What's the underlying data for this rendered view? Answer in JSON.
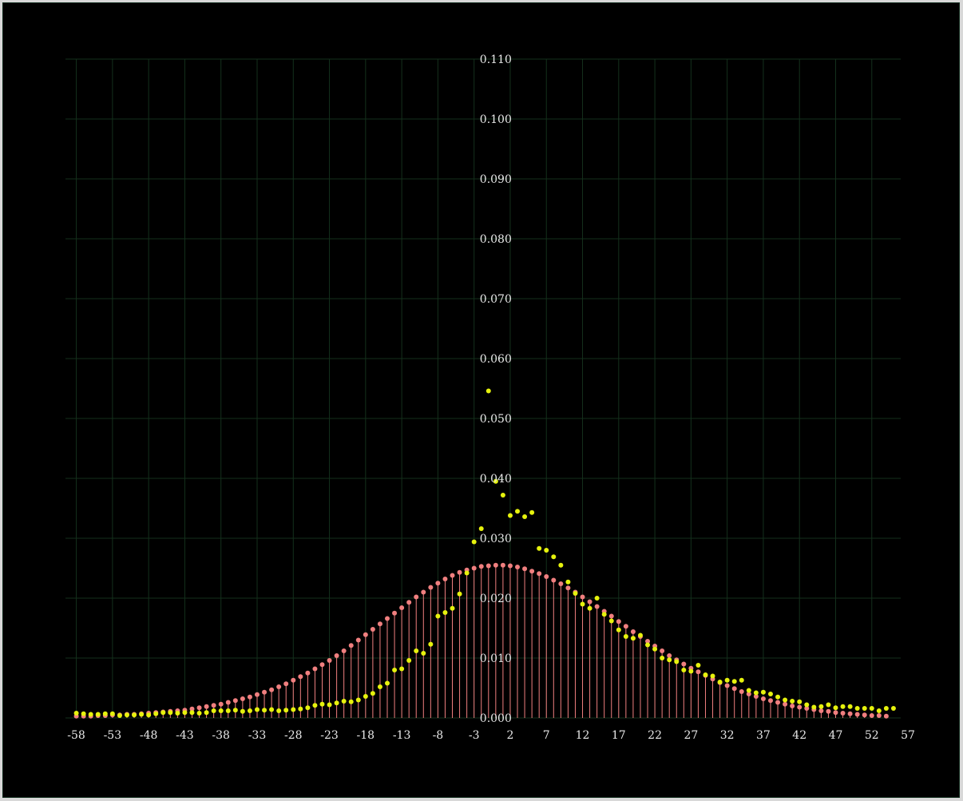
{
  "chart_data": {
    "type": "scatter",
    "grid": true,
    "colors": {
      "background": "#000000",
      "grid": "#14301c",
      "stem_series": "#f07f7f",
      "point_series": "#e6f20d",
      "text": "#e8e8e8"
    },
    "xlim": [
      -59.5,
      56
    ],
    "ylim": [
      0,
      0.11
    ],
    "x_ticks": [
      -58,
      -53,
      -48,
      -43,
      -38,
      -33,
      -28,
      -23,
      -18,
      -13,
      -8,
      -3,
      2,
      7,
      12,
      17,
      22,
      27,
      32,
      37,
      42,
      47,
      52,
      57
    ],
    "y_ticks": [
      0.0,
      0.01,
      0.02,
      0.03,
      0.04,
      0.05,
      0.06,
      0.07,
      0.08,
      0.09,
      0.1,
      0.11
    ],
    "y_tick_labels": [
      "0.000",
      "0.010",
      "0.020",
      "0.030",
      "0.040",
      "0.050",
      "0.060",
      "0.070",
      "0.080",
      "0.090",
      "0.100",
      "0.110"
    ],
    "x_start": -58,
    "series": [
      {
        "style": "stem",
        "color": "#f07f7f",
        "values": [
          0.0003,
          0.0003,
          0.0003,
          0.0004,
          0.0004,
          0.0005,
          0.0005,
          0.0006,
          0.0006,
          0.0007,
          0.0008,
          0.0009,
          0.001,
          0.0011,
          0.0012,
          0.0013,
          0.0015,
          0.0017,
          0.0019,
          0.0021,
          0.0023,
          0.0026,
          0.0029,
          0.0032,
          0.0035,
          0.0039,
          0.0043,
          0.0047,
          0.0052,
          0.0057,
          0.0063,
          0.0069,
          0.0075,
          0.0082,
          0.0089,
          0.0096,
          0.0104,
          0.0112,
          0.0121,
          0.013,
          0.0139,
          0.0148,
          0.0157,
          0.0166,
          0.0175,
          0.0184,
          0.0193,
          0.0202,
          0.021,
          0.0218,
          0.0225,
          0.0232,
          0.0238,
          0.0243,
          0.0247,
          0.025,
          0.0253,
          0.0254,
          0.0255,
          0.0255,
          0.0254,
          0.0252,
          0.0249,
          0.0245,
          0.0241,
          0.0236,
          0.023,
          0.0224,
          0.0217,
          0.021,
          0.0202,
          0.0194,
          0.0186,
          0.0178,
          0.017,
          0.0161,
          0.0153,
          0.0144,
          0.0136,
          0.0128,
          0.012,
          0.0112,
          0.0104,
          0.0097,
          0.009,
          0.0083,
          0.0077,
          0.0071,
          0.0065,
          0.0059,
          0.0054,
          0.0049,
          0.0044,
          0.004,
          0.0036,
          0.0032,
          0.0029,
          0.0026,
          0.0023,
          0.002,
          0.0018,
          0.0016,
          0.0014,
          0.0012,
          0.0011,
          0.0009,
          0.0008,
          0.0007,
          0.0006,
          0.0005,
          0.0004,
          0.0004,
          0.0003
        ]
      },
      {
        "style": "points",
        "color": "#e6f20d",
        "values": [
          0.0008,
          0.0007,
          0.0006,
          0.0006,
          0.0007,
          0.0007,
          0.0004,
          0.0005,
          0.0005,
          0.0006,
          0.0005,
          0.0007,
          0.0009,
          0.0009,
          0.0008,
          0.0009,
          0.0009,
          0.0008,
          0.0009,
          0.0012,
          0.0012,
          0.0012,
          0.0013,
          0.0011,
          0.0012,
          0.0014,
          0.0013,
          0.0014,
          0.0012,
          0.0013,
          0.0014,
          0.0015,
          0.0017,
          0.0021,
          0.0023,
          0.0022,
          0.0025,
          0.0028,
          0.0027,
          0.003,
          0.0036,
          0.0041,
          0.0052,
          0.0058,
          0.008,
          0.0082,
          0.0096,
          0.0112,
          0.0108,
          0.0123,
          0.017,
          0.0176,
          0.0183,
          0.0207,
          0.0242,
          0.0294,
          0.0316,
          0.0546,
          0.0395,
          0.0372,
          0.0338,
          0.0345,
          0.0336,
          0.0343,
          0.0283,
          0.028,
          0.0269,
          0.0255,
          0.0227,
          0.0208,
          0.019,
          0.0183,
          0.02,
          0.0173,
          0.0162,
          0.0147,
          0.0136,
          0.0133,
          0.0138,
          0.0122,
          0.0115,
          0.01,
          0.0097,
          0.0094,
          0.008,
          0.0078,
          0.0088,
          0.0072,
          0.007,
          0.006,
          0.0063,
          0.0061,
          0.0063,
          0.0046,
          0.0042,
          0.0043,
          0.004,
          0.0035,
          0.003,
          0.0028,
          0.0027,
          0.0022,
          0.0018,
          0.0019,
          0.0022,
          0.0017,
          0.0019,
          0.0019,
          0.0016,
          0.0016,
          0.0016,
          0.0012,
          0.0016,
          0.0016
        ]
      }
    ]
  }
}
